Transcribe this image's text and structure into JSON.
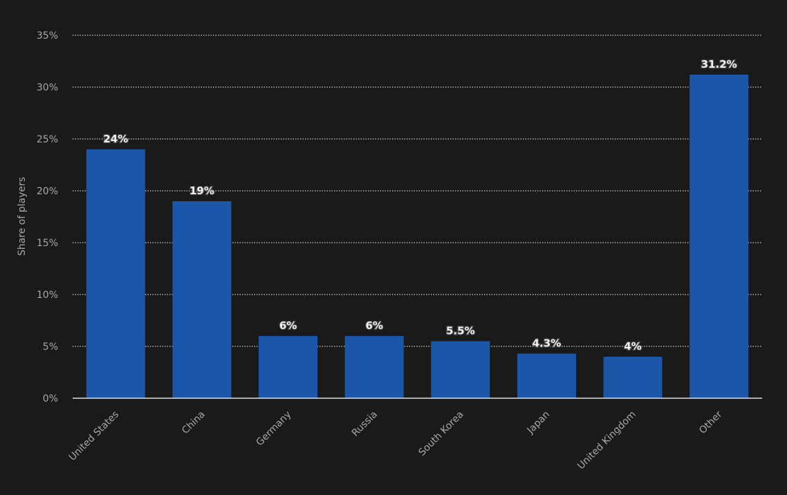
{
  "chart_data": {
    "type": "bar",
    "categories": [
      "United States",
      "China",
      "Germany",
      "Russia",
      "South Korea",
      "Japan",
      "United Kingdom",
      "Other"
    ],
    "values": [
      24,
      19,
      6,
      6,
      5.5,
      4.3,
      4,
      31.2
    ],
    "data_labels": [
      "24%",
      "19%",
      "6%",
      "6%",
      "5.5%",
      "4.3%",
      "4%",
      "31.2%"
    ],
    "xlabel": "",
    "ylabel": "Share of players",
    "ylim": [
      0,
      35
    ],
    "yticks": [
      0,
      5,
      10,
      15,
      20,
      25,
      30,
      35
    ],
    "ytick_labels": [
      "0%",
      "5%",
      "10%",
      "15%",
      "20%",
      "25%",
      "30%",
      "35%"
    ],
    "grid": true,
    "colors": {
      "bar": "#1c56a8",
      "background": "#1a1a1a",
      "grid": "#cfcfcf"
    }
  }
}
